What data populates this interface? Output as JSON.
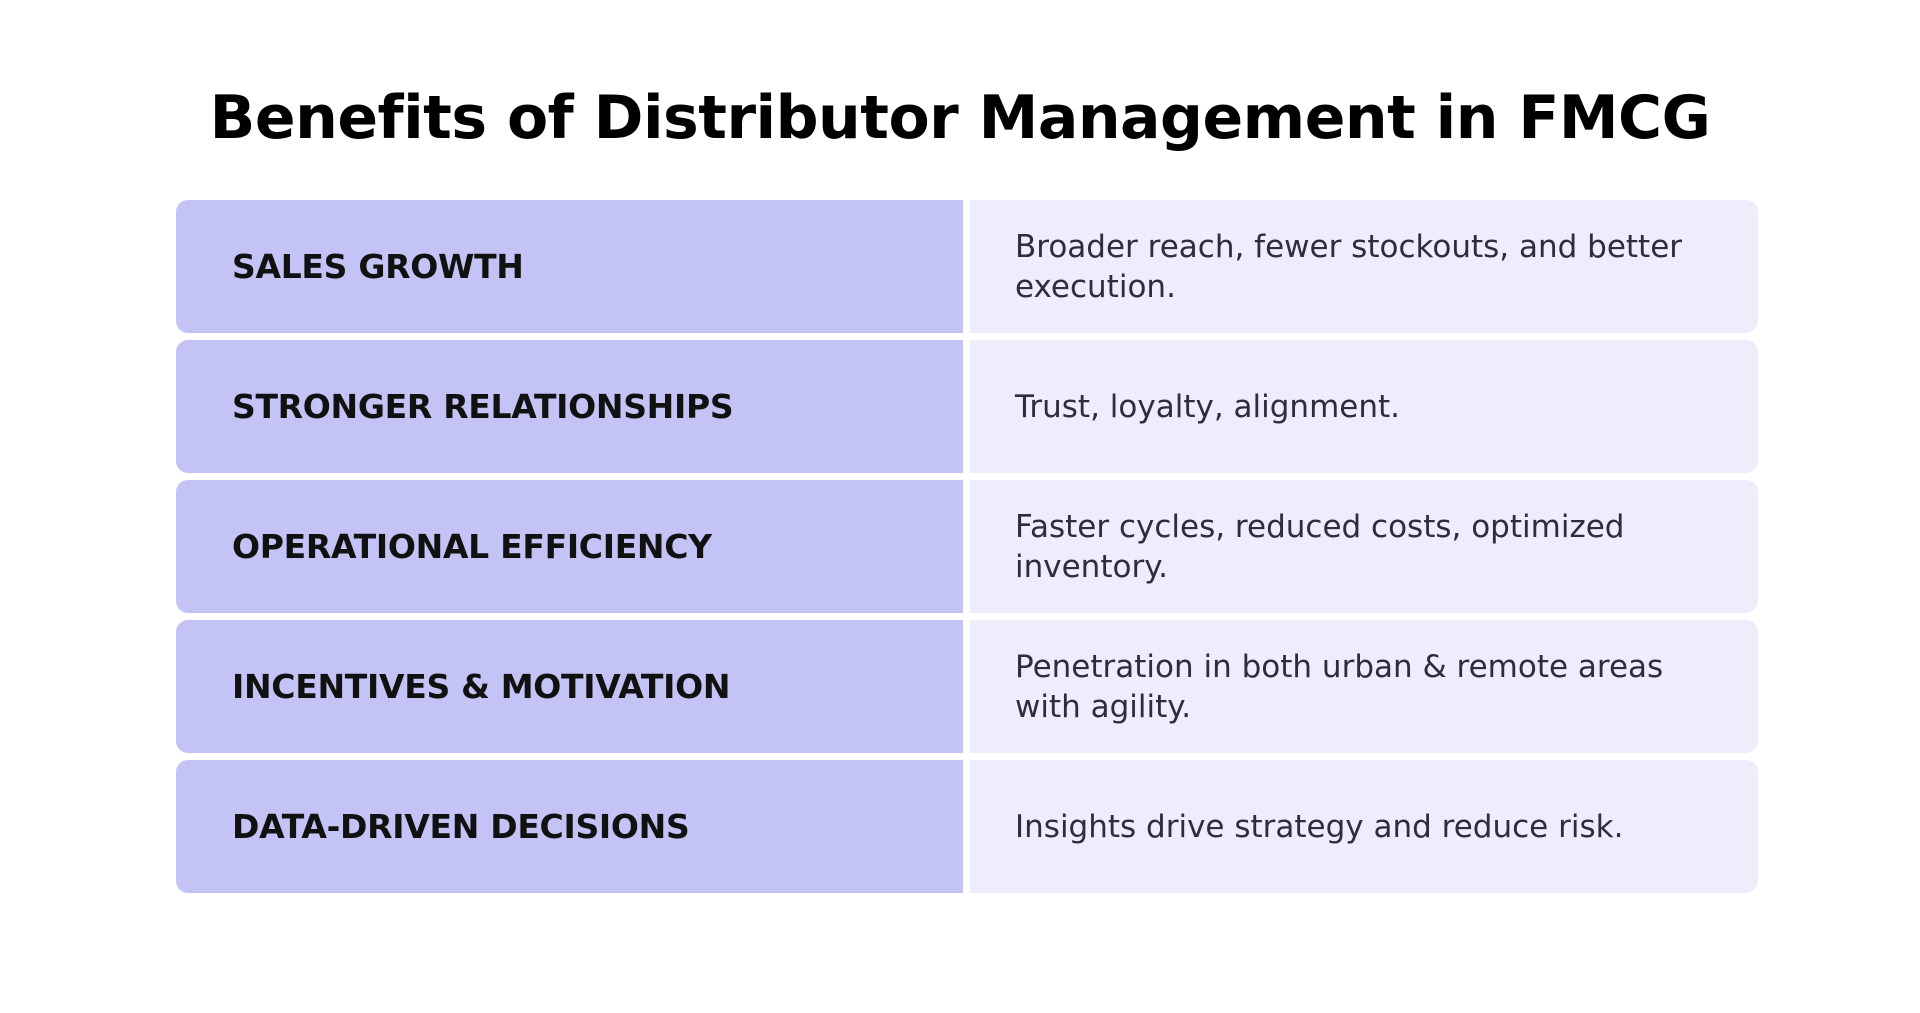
{
  "title": "Benefits of Distributor Management in FMCG",
  "colors": {
    "label_bg": "#c4c3f5",
    "desc_bg": "#eeedfc",
    "title_text": "#000000",
    "desc_text": "#2e2e3a"
  },
  "benefits": [
    {
      "label": "SALES GROWTH",
      "description": "Broader reach, fewer stockouts, and better execution."
    },
    {
      "label": "STRONGER RELATIONSHIPS",
      "description": "Trust, loyalty, alignment."
    },
    {
      "label": "OPERATIONAL EFFICIENCY",
      "description": "Faster cycles, reduced costs, optimized inventory."
    },
    {
      "label": "INCENTIVES & MOTIVATION",
      "description": "Penetration in both urban & remote areas with agility."
    },
    {
      "label": "DATA-DRIVEN DECISIONS",
      "description": "Insights drive strategy and reduce risk."
    }
  ]
}
